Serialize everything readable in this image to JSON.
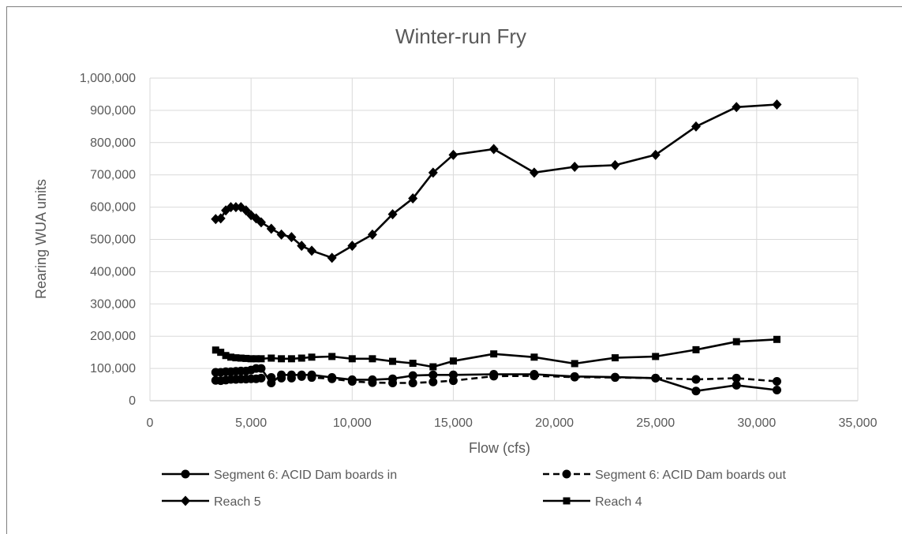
{
  "chart_data": {
    "type": "line",
    "title": "Winter-run Fry",
    "xlabel": "Flow (cfs)",
    "ylabel": "Rearing WUA units",
    "xlim": [
      0,
      35000
    ],
    "ylim": [
      0,
      1000000
    ],
    "x_ticks": [
      "0",
      "5,000",
      "10,000",
      "15,000",
      "20,000",
      "25,000",
      "30,000",
      "35,000"
    ],
    "y_ticks": [
      "0",
      "100,000",
      "200,000",
      "300,000",
      "400,000",
      "500,000",
      "600,000",
      "700,000",
      "800,000",
      "900,000",
      "1,000,000"
    ],
    "grid": true,
    "legend_position": "bottom",
    "series": [
      {
        "name": "Segment 6: ACID Dam boards in",
        "marker": "circle",
        "dash": "solid",
        "x": [
          3250,
          3500,
          3750,
          4000,
          4250,
          4500,
          4750,
          5000,
          5250,
          5500,
          6000,
          6500,
          7000,
          7500,
          8000,
          9000,
          10000,
          11000,
          12000,
          13000,
          14000,
          15000,
          17000,
          19000,
          21000,
          23000,
          25000,
          27000,
          29000,
          31000
        ],
        "y": [
          88000,
          88000,
          90000,
          90000,
          91000,
          92000,
          92000,
          95000,
          100000,
          100000,
          55000,
          80000,
          80000,
          80000,
          80000,
          72000,
          65000,
          65000,
          68000,
          78000,
          80000,
          80000,
          82000,
          82000,
          75000,
          73000,
          70000,
          30000,
          48000,
          33000
        ]
      },
      {
        "name": "Segment 6: ACID Dam boards out",
        "marker": "circle",
        "dash": "dashed",
        "x": [
          3250,
          3500,
          3750,
          4000,
          4250,
          4500,
          4750,
          5000,
          5250,
          5500,
          6000,
          6500,
          7000,
          7500,
          8000,
          9000,
          10000,
          11000,
          12000,
          13000,
          14000,
          15000,
          17000,
          19000,
          21000,
          23000,
          25000,
          27000,
          29000,
          31000
        ],
        "y": [
          63000,
          62000,
          64000,
          66000,
          66000,
          67000,
          67000,
          68000,
          68000,
          70000,
          72000,
          70000,
          70000,
          75000,
          72000,
          68000,
          60000,
          56000,
          55000,
          55000,
          58000,
          62000,
          76000,
          77000,
          73000,
          72000,
          70000,
          66000,
          70000,
          60000
        ]
      },
      {
        "name": "Reach 5",
        "marker": "diamond",
        "dash": "solid",
        "x": [
          3250,
          3500,
          3750,
          4000,
          4250,
          4500,
          4750,
          5000,
          5250,
          5500,
          6000,
          6500,
          7000,
          7500,
          8000,
          9000,
          10000,
          11000,
          12000,
          13000,
          14000,
          15000,
          17000,
          19000,
          21000,
          23000,
          25000,
          27000,
          29000,
          31000
        ],
        "y": [
          563000,
          565000,
          590000,
          600000,
          600000,
          600000,
          590000,
          575000,
          565000,
          553000,
          533000,
          515000,
          507000,
          480000,
          465000,
          443000,
          480000,
          515000,
          578000,
          627000,
          707000,
          762000,
          780000,
          707000,
          725000,
          730000,
          762000,
          850000,
          910000,
          918000
        ]
      },
      {
        "name": "Reach 4",
        "marker": "square",
        "dash": "solid",
        "x": [
          3250,
          3500,
          3750,
          4000,
          4250,
          4500,
          4750,
          5000,
          5250,
          5500,
          6000,
          6500,
          7000,
          7500,
          8000,
          9000,
          10000,
          11000,
          12000,
          13000,
          14000,
          15000,
          17000,
          19000,
          21000,
          23000,
          25000,
          27000,
          29000,
          31000
        ],
        "y": [
          157000,
          150000,
          140000,
          135000,
          133000,
          132000,
          131000,
          130000,
          130000,
          130000,
          132000,
          130000,
          130000,
          132000,
          135000,
          137000,
          130000,
          130000,
          122000,
          116000,
          105000,
          123000,
          145000,
          135000,
          115000,
          133000,
          137000,
          158000,
          183000,
          190000
        ]
      }
    ]
  }
}
